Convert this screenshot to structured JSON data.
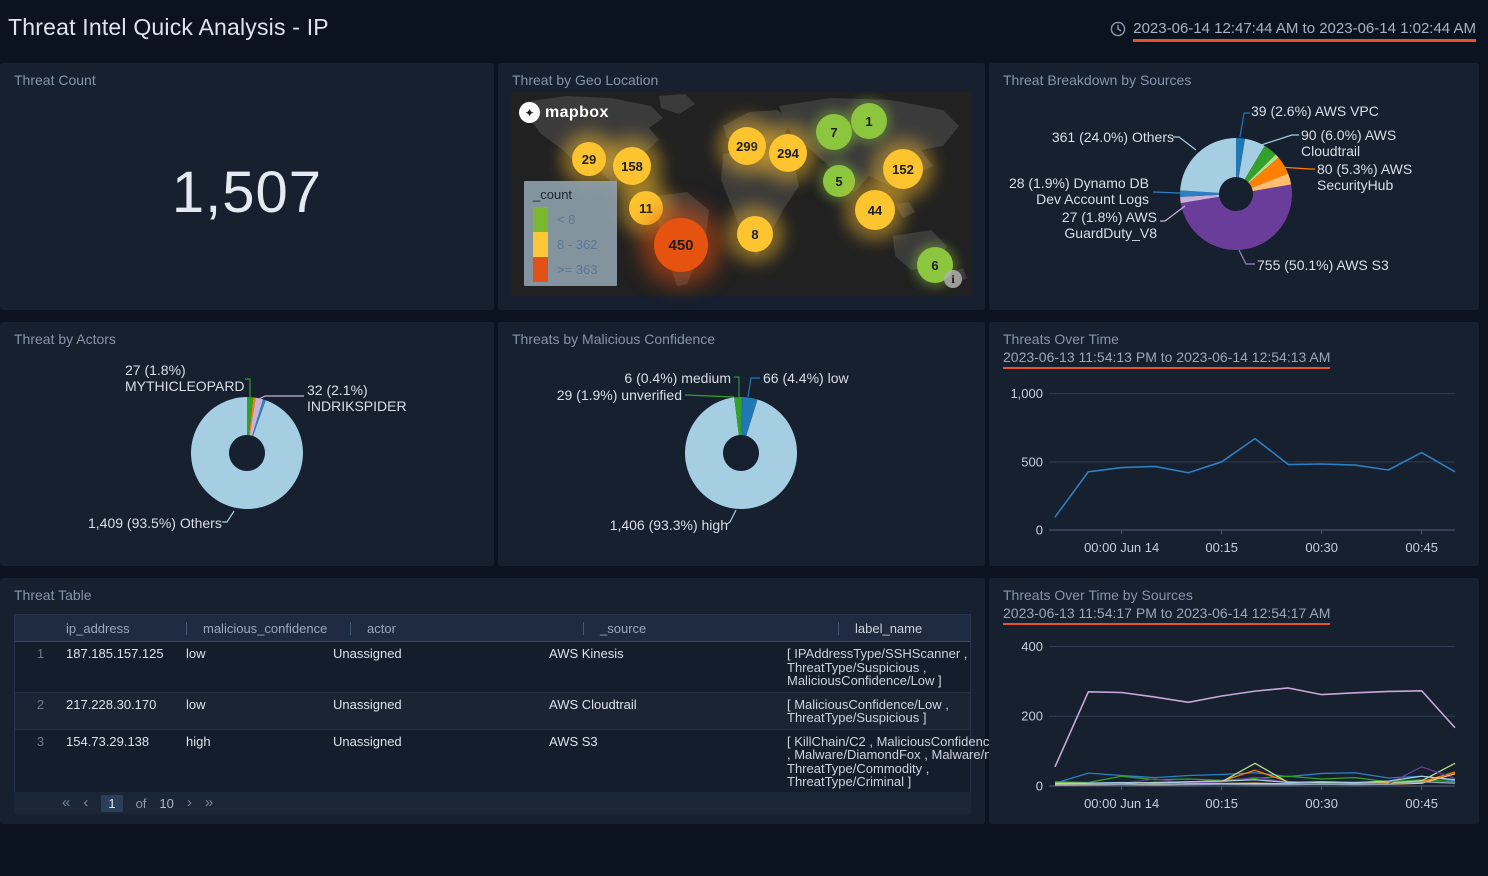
{
  "header": {
    "title": "Threat Intel Quick Analysis - IP",
    "time_range": "2023-06-14 12:47:44 AM to 2023-06-14 1:02:44 AM"
  },
  "colors": {
    "page_bg": "#0c1320",
    "panel_bg": "#16202e",
    "accent_underline": "#e8542a",
    "line_blue": "#2e7fc2"
  },
  "panels": {
    "threat_count": {
      "title": "Threat Count",
      "value": "1,507"
    },
    "geo": {
      "title": "Threat by Geo Location",
      "logo_text": "mapbox",
      "info_glyph": "i"
    },
    "table": {
      "title": "Threat Table",
      "columns": [
        "ip_address",
        "malicious_confidence",
        "actor",
        "_source",
        "label_name"
      ],
      "rows": [
        {
          "num": "1",
          "ip": "187.185.157.125",
          "confidence": "low",
          "actor": "Unassigned",
          "source": "AWS Kinesis",
          "label_lines": [
            "[ IPAddressType/SSHScanner ,",
            "ThreatType/Suspicious ,",
            "MaliciousConfidence/Low ]"
          ]
        },
        {
          "num": "2",
          "ip": "217.228.30.170",
          "confidence": "low",
          "actor": "Unassigned",
          "source": "AWS Cloudtrail",
          "label_lines": [
            "[ MaliciousConfidence/Low ,",
            "ThreatType/Suspicious ]"
          ]
        },
        {
          "num": "3",
          "ip": "154.73.29.138",
          "confidence": "high",
          "actor": "Unassigned",
          "source": "AWS S3",
          "label_lines": [
            "[ KillChain/C2 , MaliciousConfidenc",
            ", Malware/DiamondFox , Malware/n",
            "ThreatType/Commodity ,",
            "ThreatType/Criminal ]"
          ]
        }
      ],
      "pagination": {
        "first": "«",
        "prev": "‹",
        "current": "1",
        "of_label": "of",
        "total": "10",
        "next": "›",
        "last": "»"
      }
    }
  },
  "chart_data": [
    {
      "type": "pie",
      "title": "Threat Breakdown by Sources",
      "slices": [
        {
          "label": "39 (2.6%) AWS VPC",
          "value": 39,
          "color": "#1f78b4"
        },
        {
          "label": "90 (6.0%) AWS\nCloudtrail",
          "value": 90,
          "color": "#a6cee3"
        },
        {
          "label": "",
          "value": 60,
          "color": "#33a02c"
        },
        {
          "label": "",
          "value": 18,
          "color": "#b2df8a"
        },
        {
          "label": "80 (5.3%) AWS\nSecurityHub",
          "value": 80,
          "color": "#ff7f00"
        },
        {
          "label": "",
          "value": 49,
          "color": "#fdbf6f"
        },
        {
          "label": "755 (50.1%) AWS S3",
          "value": 755,
          "color": "#6a3d9a"
        },
        {
          "label": "27 (1.8%) AWS\nGuardDuty_V8",
          "value": 27,
          "color": "#cab2d6"
        },
        {
          "label": "28 (1.9%) Dynamo DB\nDev Account Logs",
          "value": 28,
          "color": "#2e7fc2"
        },
        {
          "label": "361 (24.0%) Others",
          "value": 361,
          "color": "#a6cee3"
        }
      ]
    },
    {
      "type": "pie",
      "title": "Threat by Actors",
      "slices": [
        {
          "label": "27 (1.8%)\nMYTHICLEOPARD",
          "value": 27,
          "color": "#33a02c"
        },
        {
          "label": "",
          "value": 10,
          "color": "#ff7f00"
        },
        {
          "label": "32 (2.1%)\nINDRIKSPIDER",
          "value": 32,
          "color": "#cab2d6"
        },
        {
          "label": "",
          "value": 12,
          "color": "#2e7fc2"
        },
        {
          "label": "1,409 (93.5%) Others",
          "value": 1409,
          "color": "#a6cee3"
        }
      ]
    },
    {
      "type": "pie",
      "title": "Threats by Malicious Confidence",
      "slices": [
        {
          "label": "6 (0.4%) medium",
          "value": 6,
          "color": "#2d8f44"
        },
        {
          "label": "66 (4.4%) low",
          "value": 66,
          "color": "#1f78b4"
        },
        {
          "label": "1,406 (93.3%) high",
          "value": 1406,
          "color": "#a6cee3"
        },
        {
          "label": "29 (1.9%) unverified",
          "value": 29,
          "color": "#33a02c"
        }
      ]
    },
    {
      "type": "line",
      "title": "Threats Over Time",
      "time_range": "2023-06-13 11:54:13 PM to 2023-06-14 12:54:13 AM",
      "x_tick_labels": [
        "00:00 Jun 14",
        "00:15",
        "00:30",
        "00:45"
      ],
      "x_tick_indices": [
        2,
        5,
        8,
        11
      ],
      "y_ticks": [
        0,
        500,
        1000
      ],
      "y_tick_labels": [
        "0",
        "500",
        "1,000"
      ],
      "ylim": [
        0,
        1100
      ],
      "grid": true,
      "legend": "none",
      "series": [
        {
          "color": "#2e7fc2",
          "values": [
            95,
            427,
            458,
            466,
            420,
            500,
            670,
            480,
            484,
            476,
            440,
            568,
            427
          ]
        }
      ]
    },
    {
      "type": "line",
      "title": "Threats Over Time by Sources",
      "time_range": "2023-06-13 11:54:17 PM to 2023-06-14 12:54:17 AM",
      "x_tick_labels": [
        "00:00 Jun 14",
        "00:15",
        "00:30",
        "00:45"
      ],
      "x_tick_indices": [
        2,
        5,
        8,
        11
      ],
      "y_ticks": [
        0,
        200,
        400
      ],
      "y_tick_labels": [
        "0",
        "200",
        "400"
      ],
      "ylim": [
        0,
        430
      ],
      "grid": true,
      "legend": "none",
      "series": [
        {
          "color": "#c9a7d8",
          "values": [
            55,
            270,
            268,
            255,
            240,
            258,
            272,
            281,
            262,
            267,
            271,
            273,
            167
          ]
        },
        {
          "color": "#2e7fc2",
          "values": [
            8,
            37,
            30,
            24,
            30,
            33,
            38,
            27,
            36,
            38,
            23,
            28,
            15
          ]
        },
        {
          "color": "#33a02c",
          "values": [
            12,
            10,
            28,
            18,
            20,
            16,
            22,
            28,
            20,
            24,
            12,
            18,
            12
          ]
        },
        {
          "color": "#ff7f00",
          "values": [
            5,
            6,
            8,
            10,
            12,
            14,
            45,
            12,
            8,
            8,
            10,
            12,
            40
          ]
        },
        {
          "color": "#b2df8a",
          "values": [
            8,
            8,
            8,
            10,
            10,
            12,
            65,
            10,
            8,
            10,
            8,
            15,
            65
          ]
        },
        {
          "color": "#6a3d9a",
          "values": [
            4,
            5,
            8,
            20,
            8,
            12,
            25,
            10,
            6,
            8,
            6,
            55,
            22
          ]
        },
        {
          "color": "#a6cee3",
          "values": [
            5,
            8,
            10,
            8,
            12,
            14,
            18,
            10,
            12,
            10,
            14,
            28,
            18
          ]
        },
        {
          "color": "#fdbf6f",
          "values": [
            3,
            4,
            5,
            4,
            6,
            7,
            8,
            6,
            5,
            6,
            5,
            8,
            35
          ]
        },
        {
          "color": "#8fa0b5",
          "values": [
            2,
            3,
            4,
            3,
            4,
            5,
            4,
            4,
            5,
            4,
            5,
            12,
            8
          ]
        }
      ]
    },
    {
      "type": "map",
      "title": "Threat by Geo Location",
      "legend": {
        "title": "_count",
        "items": [
          {
            "label": "< 8",
            "color": "#7cb82f"
          },
          {
            "label": "8 - 362",
            "color": "#fdc835"
          },
          {
            "label": ">= 363",
            "color": "#e25117"
          }
        ]
      },
      "points": [
        {
          "count": "29",
          "x": 78,
          "y": 67,
          "d": 34,
          "level": "mid"
        },
        {
          "count": "158",
          "x": 121,
          "y": 74,
          "d": 38,
          "level": "mid"
        },
        {
          "count": "11",
          "x": 135,
          "y": 116,
          "d": 34,
          "level": "mid"
        },
        {
          "count": "450",
          "x": 170,
          "y": 153,
          "d": 54,
          "level": "high"
        },
        {
          "count": "299",
          "x": 236,
          "y": 54,
          "d": 38,
          "level": "mid"
        },
        {
          "count": "294",
          "x": 277,
          "y": 61,
          "d": 38,
          "level": "mid"
        },
        {
          "count": "7",
          "x": 323,
          "y": 40,
          "d": 36,
          "level": "low"
        },
        {
          "count": "1",
          "x": 358,
          "y": 29,
          "d": 36,
          "level": "low"
        },
        {
          "count": "5",
          "x": 328,
          "y": 89,
          "d": 32,
          "level": "low"
        },
        {
          "count": "152",
          "x": 392,
          "y": 77,
          "d": 40,
          "level": "mid"
        },
        {
          "count": "44",
          "x": 364,
          "y": 118,
          "d": 40,
          "level": "mid"
        },
        {
          "count": "8",
          "x": 244,
          "y": 142,
          "d": 36,
          "level": "mid"
        },
        {
          "count": "6",
          "x": 424,
          "y": 173,
          "d": 36,
          "level": "low"
        }
      ]
    }
  ]
}
